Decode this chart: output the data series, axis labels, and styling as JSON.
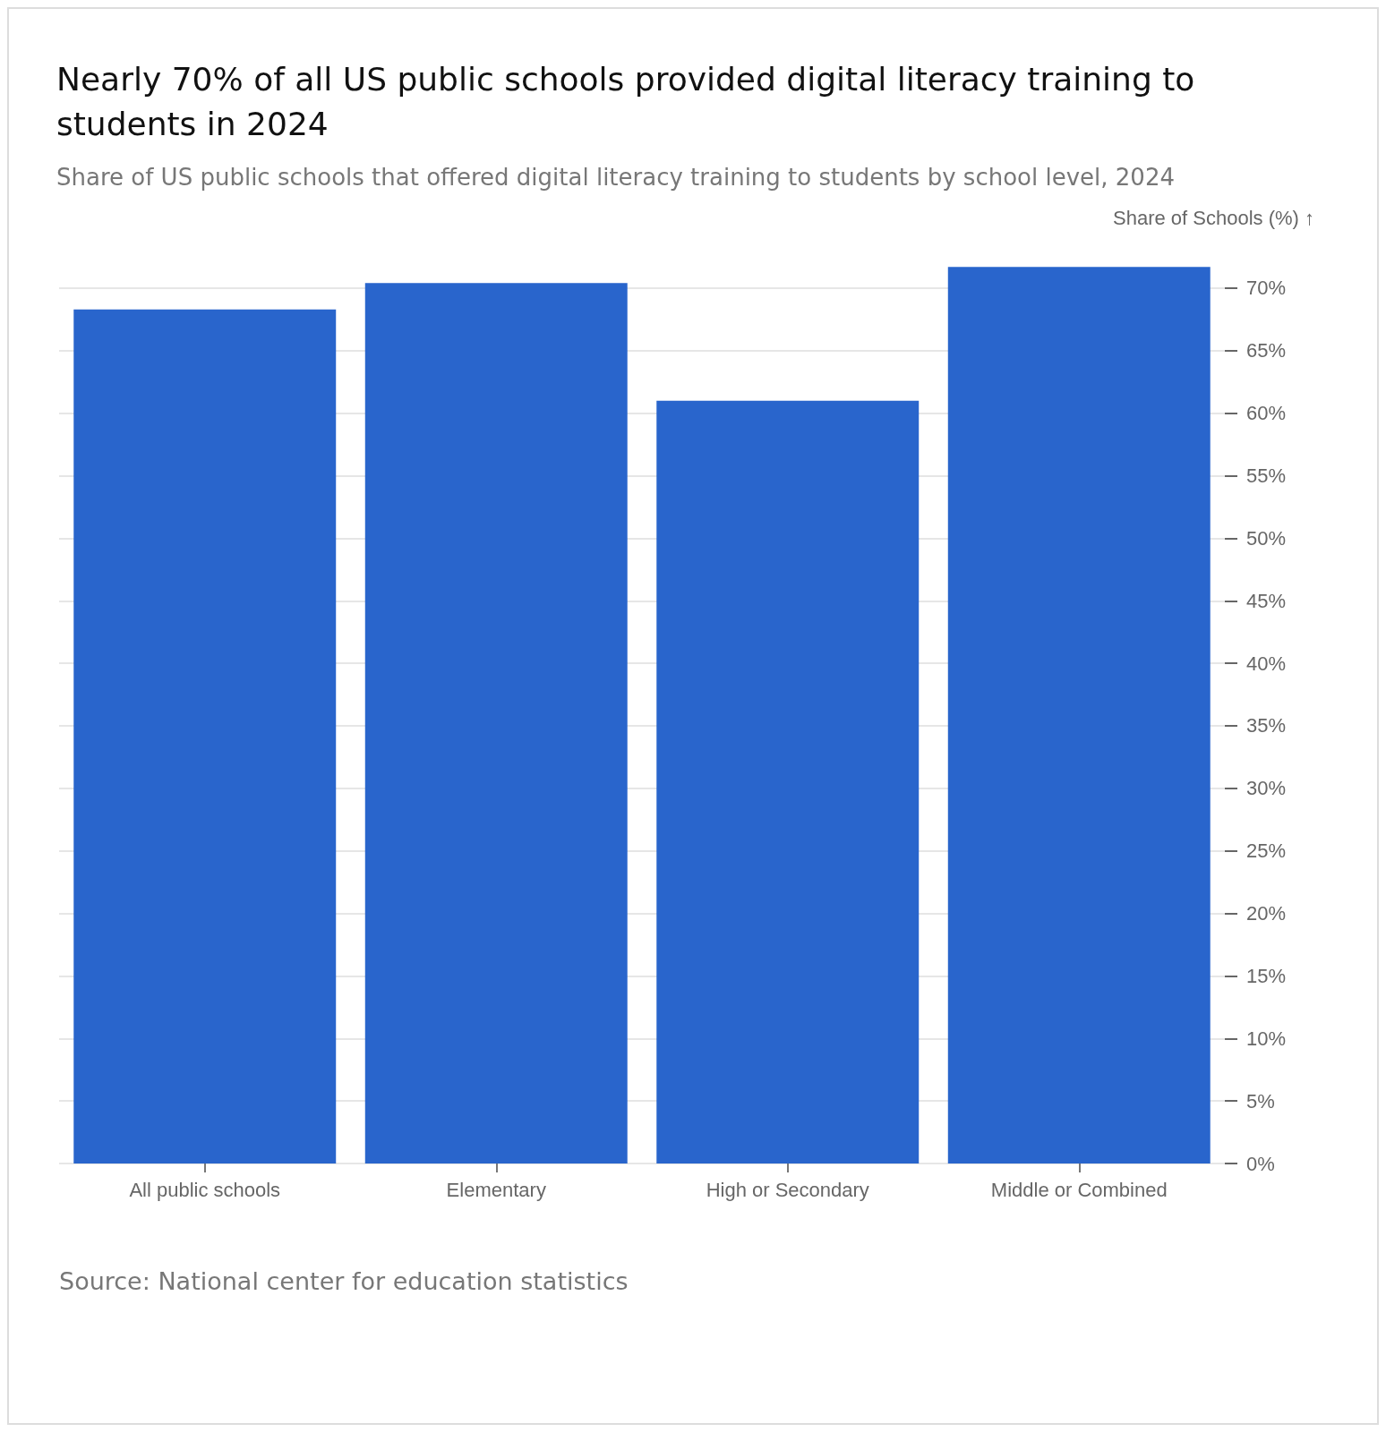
{
  "chart_data": {
    "type": "bar",
    "title": "Nearly 70% of all US public schools provided digital literacy training to students in 2024",
    "subtitle": "Share of US public schools that offered digital literacy training to students by school level, 2024",
    "ylabel": "Share of Schools (%) ↑",
    "categories": [
      "All public schools",
      "Elementary",
      "High or Secondary",
      "Middle or Combined"
    ],
    "values": [
      68.3,
      70.4,
      61.0,
      71.7
    ],
    "color": "#2965cc",
    "ylim": [
      0,
      72
    ],
    "yticks": [
      {
        "value": 0,
        "label": "0%"
      },
      {
        "value": 5,
        "label": "5%"
      },
      {
        "value": 10,
        "label": "10%"
      },
      {
        "value": 15,
        "label": "15%"
      },
      {
        "value": 20,
        "label": "20%"
      },
      {
        "value": 25,
        "label": "25%"
      },
      {
        "value": 30,
        "label": "30%"
      },
      {
        "value": 35,
        "label": "35%"
      },
      {
        "value": 40,
        "label": "40%"
      },
      {
        "value": 45,
        "label": "45%"
      },
      {
        "value": 50,
        "label": "50%"
      },
      {
        "value": 55,
        "label": "55%"
      },
      {
        "value": 60,
        "label": "60%"
      },
      {
        "value": 65,
        "label": "65%"
      },
      {
        "value": 70,
        "label": "70%"
      }
    ],
    "grid": "y",
    "annotations": [
      "Source: National center for education statistics"
    ]
  }
}
